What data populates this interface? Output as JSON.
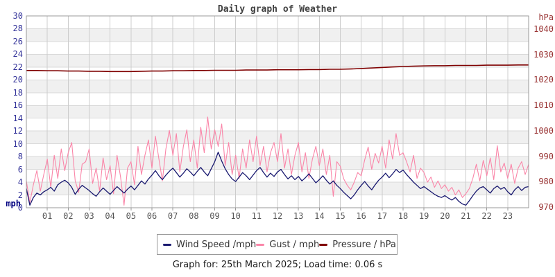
{
  "page": {
    "title": "Daily graph of Weather",
    "caption": "Graph for: 25th March 2025; Load time: 0.06 s"
  },
  "colors": {
    "wind": "#191970",
    "gust": "#fa85a8",
    "pressure": "#7f0000",
    "left_axis_text": "#333399",
    "right_axis_text": "#993333",
    "x_axis_text": "#555555",
    "grid_vertical": "#cccccc",
    "grid_horizontal": "#d9d9d9",
    "band_gray": "#f0f0f0",
    "plot_border": "#999999",
    "title_text": "#404040",
    "caption_text": "#1a1a1a",
    "unit_left_text": "#000080"
  },
  "chart_data": {
    "type": "line",
    "title": "Daily graph of Weather",
    "grid": true,
    "background_bands": "alternating white / light gray every 2 mph",
    "x_axis": {
      "label": "",
      "range_hours": [
        0,
        24
      ],
      "ticks": [
        "01",
        "02",
        "03",
        "04",
        "05",
        "06",
        "07",
        "08",
        "09",
        "10",
        "11",
        "12",
        "13",
        "14",
        "15",
        "16",
        "17",
        "18",
        "19",
        "20",
        "21",
        "22",
        "23"
      ]
    },
    "left_axis": {
      "label": "mph",
      "range": [
        0,
        30
      ],
      "ticks": [
        0,
        2,
        4,
        6,
        8,
        10,
        12,
        14,
        16,
        18,
        20,
        22,
        24,
        26,
        28,
        30
      ]
    },
    "right_axis": {
      "label": "hPa",
      "range": [
        970,
        1040
      ],
      "ticks": [
        970,
        980,
        990,
        1000,
        1010,
        1020,
        1030,
        1040
      ]
    },
    "legend": [
      {
        "label": "Wind Speed /mph",
        "color": "#191970"
      },
      {
        "label": "Gust / mph",
        "color": "#fa85a8"
      },
      {
        "label": "Pressure / hPa",
        "color": "#7f0000"
      }
    ],
    "series": [
      {
        "name": "Wind Speed /mph",
        "axis": "left",
        "color": "#191970",
        "stroke_width": 1.3,
        "interval_minutes": 10,
        "values": [
          3.0,
          0.4,
          1.6,
          2.3,
          2.0,
          2.5,
          2.8,
          3.2,
          2.6,
          3.6,
          4.0,
          4.3,
          3.9,
          3.2,
          2.1,
          2.9,
          3.5,
          3.1,
          2.7,
          2.2,
          1.8,
          2.5,
          3.1,
          2.6,
          2.1,
          2.7,
          3.3,
          2.8,
          2.3,
          2.9,
          3.4,
          2.8,
          3.5,
          4.2,
          3.7,
          4.5,
          5.1,
          5.8,
          5.0,
          4.4,
          5.1,
          5.7,
          6.2,
          5.5,
          4.8,
          5.4,
          6.1,
          5.6,
          5.0,
          5.7,
          6.3,
          5.6,
          5.0,
          6.1,
          7.2,
          8.7,
          7.3,
          6.1,
          5.2,
          4.5,
          4.1,
          4.8,
          5.5,
          5.0,
          4.4,
          5.1,
          5.8,
          6.3,
          5.5,
          4.8,
          5.4,
          4.9,
          5.6,
          6.0,
          5.2,
          4.5,
          5.0,
          4.4,
          4.9,
          4.2,
          4.7,
          5.3,
          4.6,
          3.9,
          4.4,
          5.0,
          4.3,
          3.7,
          4.2,
          3.5,
          3.0,
          2.4,
          1.9,
          1.4,
          2.0,
          2.8,
          3.5,
          4.1,
          3.4,
          2.8,
          3.6,
          4.3,
          4.8,
          5.4,
          4.7,
          5.3,
          6.0,
          5.5,
          5.9,
          5.2,
          4.6,
          4.0,
          3.5,
          3.0,
          3.3,
          2.9,
          2.5,
          2.1,
          1.8,
          1.6,
          1.9,
          1.5,
          1.2,
          1.6,
          1.0,
          0.6,
          0.4,
          1.1,
          1.9,
          2.6,
          3.1,
          3.3,
          2.8,
          2.3,
          3.0,
          3.4,
          2.9,
          3.2,
          2.5,
          2.0,
          2.8,
          3.3,
          2.7,
          3.2,
          3.3
        ]
      },
      {
        "name": "Gust / mph",
        "axis": "left",
        "color": "#fa85a8",
        "stroke_width": 1.1,
        "interval_minutes": 10,
        "values": [
          4.2,
          0.8,
          3.6,
          5.8,
          2.6,
          5.2,
          7.6,
          3.2,
          8.2,
          4.6,
          9.2,
          5.8,
          8.6,
          10.2,
          4.2,
          2.4,
          6.8,
          7.2,
          9.2,
          3.8,
          6.2,
          2.6,
          7.8,
          4.4,
          6.6,
          2.2,
          8.2,
          4.8,
          0.4,
          6.2,
          7.2,
          3.6,
          9.6,
          5.2,
          8.2,
          10.6,
          6.2,
          11.2,
          7.6,
          4.2,
          9.2,
          12.1,
          8.2,
          11.6,
          5.6,
          9.6,
          12.2,
          7.2,
          10.6,
          6.2,
          12.6,
          8.6,
          14.2,
          9.2,
          12.2,
          9.6,
          13.1,
          6.6,
          10.2,
          5.2,
          8.2,
          4.6,
          9.2,
          6.2,
          10.6,
          7.2,
          11.2,
          6.6,
          9.6,
          5.6,
          8.6,
          10.2,
          7.2,
          11.6,
          6.2,
          9.2,
          5.2,
          8.2,
          10.2,
          5.6,
          8.6,
          4.6,
          7.6,
          9.6,
          6.6,
          9.2,
          5.2,
          8.2,
          1.8,
          7.2,
          6.5,
          4.5,
          3.5,
          2.8,
          4.0,
          5.5,
          5.0,
          7.5,
          9.5,
          6.0,
          8.5,
          7.0,
          9.6,
          6.2,
          10.6,
          7.6,
          11.6,
          8.2,
          8.6,
          7.2,
          5.6,
          8.2,
          4.6,
          6.2,
          5.5,
          4.0,
          4.8,
          3.2,
          4.2,
          3.0,
          3.6,
          2.6,
          3.2,
          2.0,
          2.8,
          1.6,
          2.2,
          3.0,
          4.6,
          6.8,
          4.2,
          7.4,
          5.0,
          7.8,
          4.4,
          9.7,
          5.6,
          7.0,
          4.6,
          6.8,
          3.8,
          6.2,
          7.2,
          5.2,
          6.8
        ]
      },
      {
        "name": "Pressure / hPa",
        "axis": "right",
        "color": "#7f0000",
        "stroke_width": 1.6,
        "interval_minutes": 30,
        "values": [
          1023.7,
          1023.7,
          1023.6,
          1023.6,
          1023.5,
          1023.5,
          1023.4,
          1023.4,
          1023.3,
          1023.3,
          1023.3,
          1023.4,
          1023.5,
          1023.5,
          1023.6,
          1023.6,
          1023.7,
          1023.7,
          1023.8,
          1023.8,
          1023.8,
          1023.9,
          1023.9,
          1023.9,
          1024.0,
          1024.0,
          1024.0,
          1024.1,
          1024.1,
          1024.2,
          1024.2,
          1024.3,
          1024.5,
          1024.7,
          1024.9,
          1025.1,
          1025.3,
          1025.4,
          1025.5,
          1025.6,
          1025.6,
          1025.7,
          1025.7,
          1025.7,
          1025.8,
          1025.8,
          1025.8,
          1025.9,
          1025.9
        ]
      }
    ]
  }
}
